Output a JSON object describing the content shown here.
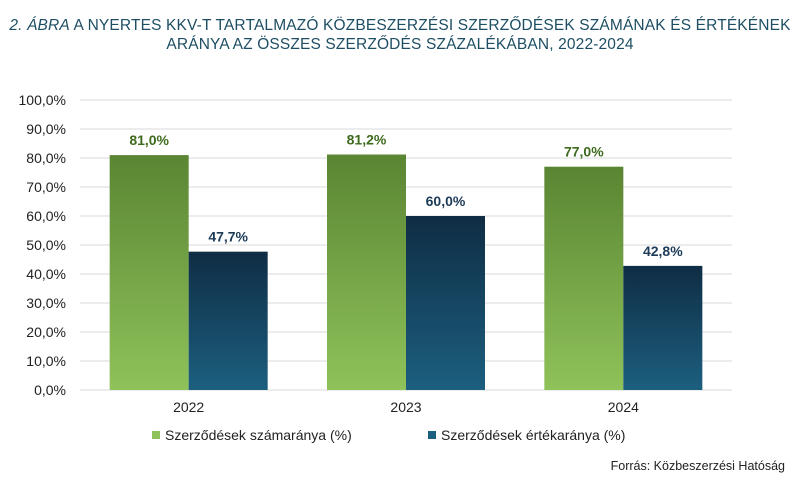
{
  "title": {
    "figure_label": "2. ÁBRA",
    "line1": "A NYERTES KKV-T TARTALMAZÓ KÖZBESZERZÉSI SZERZŐDÉSEK SZÁMÁNAK ÉS ÉRTÉKÉNEK",
    "line2": "ARÁNYA AZ ÖSSZES SZERZŐDÉS SZÁZALÉKÁBAN, 2022-2024"
  },
  "source": "Forrás: Közbeszerzési Hatóság",
  "colors": {
    "title": "#1d4e63",
    "series1_top": "#5a8533",
    "series1_bottom": "#8fc25a",
    "series1_label": "#3f6b1e",
    "series2_top": "#0f2d44",
    "series2_bottom": "#1c5f7f",
    "series2_label": "#1c3b57",
    "grid": "#d9d9d9"
  },
  "chart_data": {
    "type": "bar",
    "categories": [
      "2022",
      "2023",
      "2024"
    ],
    "series": [
      {
        "name": "Szerződések számaránya (%)",
        "values": [
          81.0,
          81.2,
          77.0
        ],
        "labels": [
          "81,0%",
          "81,2%",
          "77,0%"
        ]
      },
      {
        "name": "Szerződések értékaránya (%)",
        "values": [
          47.7,
          60.0,
          42.8
        ],
        "labels": [
          "47,7%",
          "60,0%",
          "42,8%"
        ]
      }
    ],
    "ylim": [
      0,
      100
    ],
    "yticks": [
      0,
      10,
      20,
      30,
      40,
      50,
      60,
      70,
      80,
      90,
      100
    ],
    "ytick_labels": [
      "0,0%",
      "10,0%",
      "20,0%",
      "30,0%",
      "40,0%",
      "50,0%",
      "60,0%",
      "70,0%",
      "80,0%",
      "90,0%",
      "100,0%"
    ],
    "grid": true,
    "legend_position": "bottom"
  }
}
